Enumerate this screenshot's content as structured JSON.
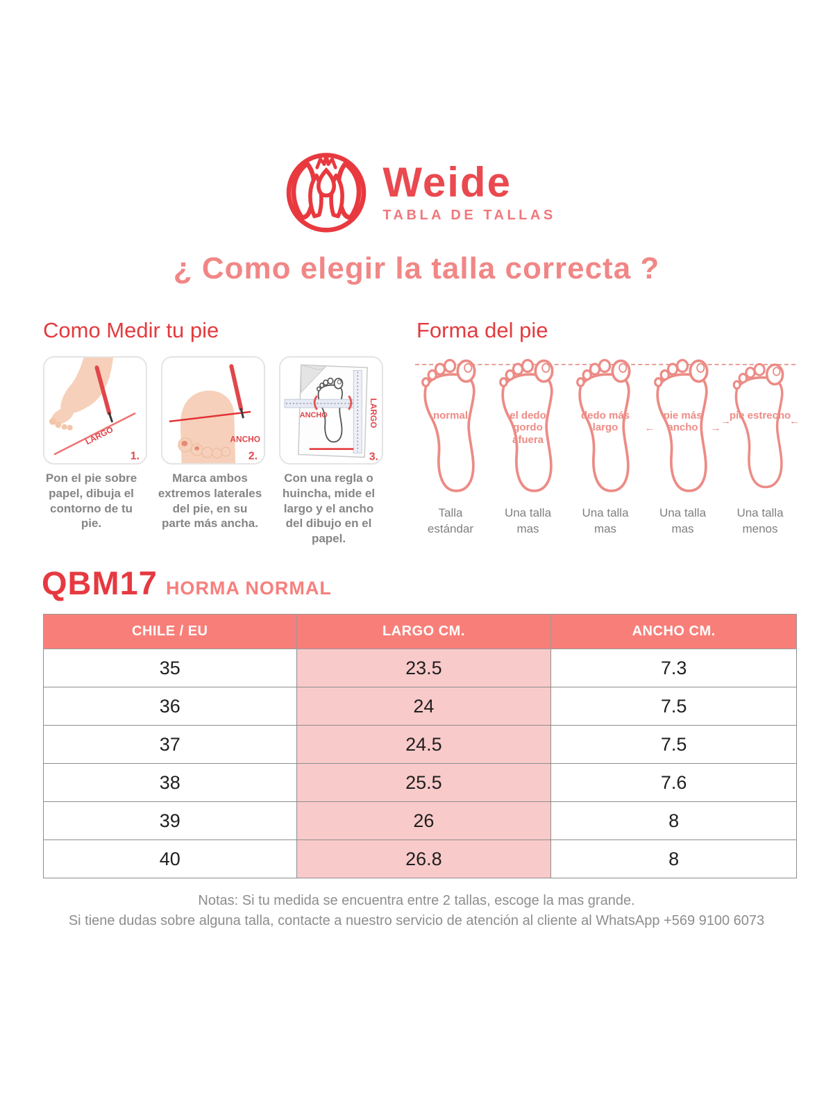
{
  "brand": {
    "name": "Weide",
    "tagline": "TABLA DE TALLAS"
  },
  "title": "¿ Como elegir la talla correcta ?",
  "measure": {
    "heading": "Como Medir tu pie",
    "steps": [
      {
        "num": "1.",
        "label": "LARGO",
        "caption": "Pon el pie sobre papel, dibuja el contorno de tu pie."
      },
      {
        "num": "2.",
        "label": "ANCHO",
        "caption": "Marca ambos extremos laterales del pie, en su parte más ancha."
      },
      {
        "num": "3.",
        "label_ancho": "ANCHO",
        "label_largo": "LARGO",
        "caption": "Con una regla o huincha, mide el largo y el ancho del dibujo en el papel."
      }
    ]
  },
  "shapes": {
    "heading": "Forma del pie",
    "items": [
      {
        "label": "normal",
        "caption": "Talla estándar"
      },
      {
        "label": "el dedo gordo afuera",
        "caption": "Una talla mas"
      },
      {
        "label": "dedo más largo",
        "caption": "Una talla mas"
      },
      {
        "label": "pie más ancho",
        "caption": "Una talla mas"
      },
      {
        "label": "pie estrecho",
        "caption": "Una talla menos"
      }
    ]
  },
  "size_chart": {
    "model": "QBM17",
    "subtitle": "HORMA NORMAL",
    "columns": [
      "CHILE / EU",
      "LARGO CM.",
      "ANCHO CM."
    ],
    "rows": [
      [
        "35",
        "23.5",
        "7.3"
      ],
      [
        "36",
        "24",
        "7.5"
      ],
      [
        "37",
        "24.5",
        "7.5"
      ],
      [
        "38",
        "25.5",
        "7.6"
      ],
      [
        "39",
        "26",
        "8"
      ],
      [
        "40",
        "26.8",
        "8"
      ]
    ]
  },
  "notes": {
    "line1": "Notas: Si tu medida se encuentra entre 2 tallas, escoge la mas grande.",
    "line2": "Si tiene dudas sobre alguna talla, contacte a nuestro servicio de atención al cliente al WhatsApp +569 9100 6073"
  },
  "colors": {
    "brand_red": "#e8393f",
    "title_salmon": "#f18686",
    "table_header_bg": "#f87f79",
    "table_pink_cell": "#f9caca",
    "gray_text": "#858585",
    "foot_outline": "#ec8b85"
  }
}
